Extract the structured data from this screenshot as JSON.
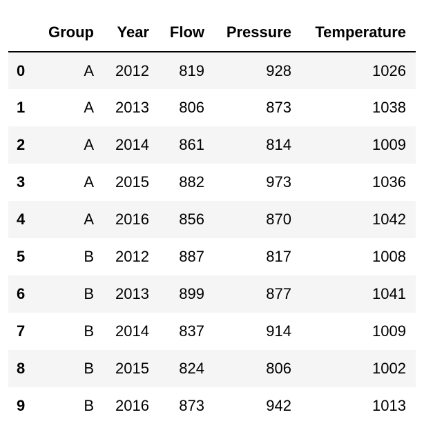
{
  "table": {
    "index_header": "",
    "columns": [
      "Group",
      "Year",
      "Flow",
      "Pressure",
      "Temperature"
    ],
    "rows": [
      {
        "index": "0",
        "cells": [
          "A",
          "2012",
          "819",
          "928",
          "1026"
        ]
      },
      {
        "index": "1",
        "cells": [
          "A",
          "2013",
          "806",
          "873",
          "1038"
        ]
      },
      {
        "index": "2",
        "cells": [
          "A",
          "2014",
          "861",
          "814",
          "1009"
        ]
      },
      {
        "index": "3",
        "cells": [
          "A",
          "2015",
          "882",
          "973",
          "1036"
        ]
      },
      {
        "index": "4",
        "cells": [
          "A",
          "2016",
          "856",
          "870",
          "1042"
        ]
      },
      {
        "index": "5",
        "cells": [
          "B",
          "2012",
          "887",
          "817",
          "1008"
        ]
      },
      {
        "index": "6",
        "cells": [
          "B",
          "2013",
          "899",
          "877",
          "1041"
        ]
      },
      {
        "index": "7",
        "cells": [
          "B",
          "2014",
          "837",
          "914",
          "1009"
        ]
      },
      {
        "index": "8",
        "cells": [
          "B",
          "2015",
          "824",
          "806",
          "1002"
        ]
      },
      {
        "index": "9",
        "cells": [
          "B",
          "2016",
          "873",
          "942",
          "1013"
        ]
      }
    ]
  },
  "colors": {
    "stripe": "#f5f5f5",
    "header_rule": "#000000",
    "text": "#000000"
  }
}
